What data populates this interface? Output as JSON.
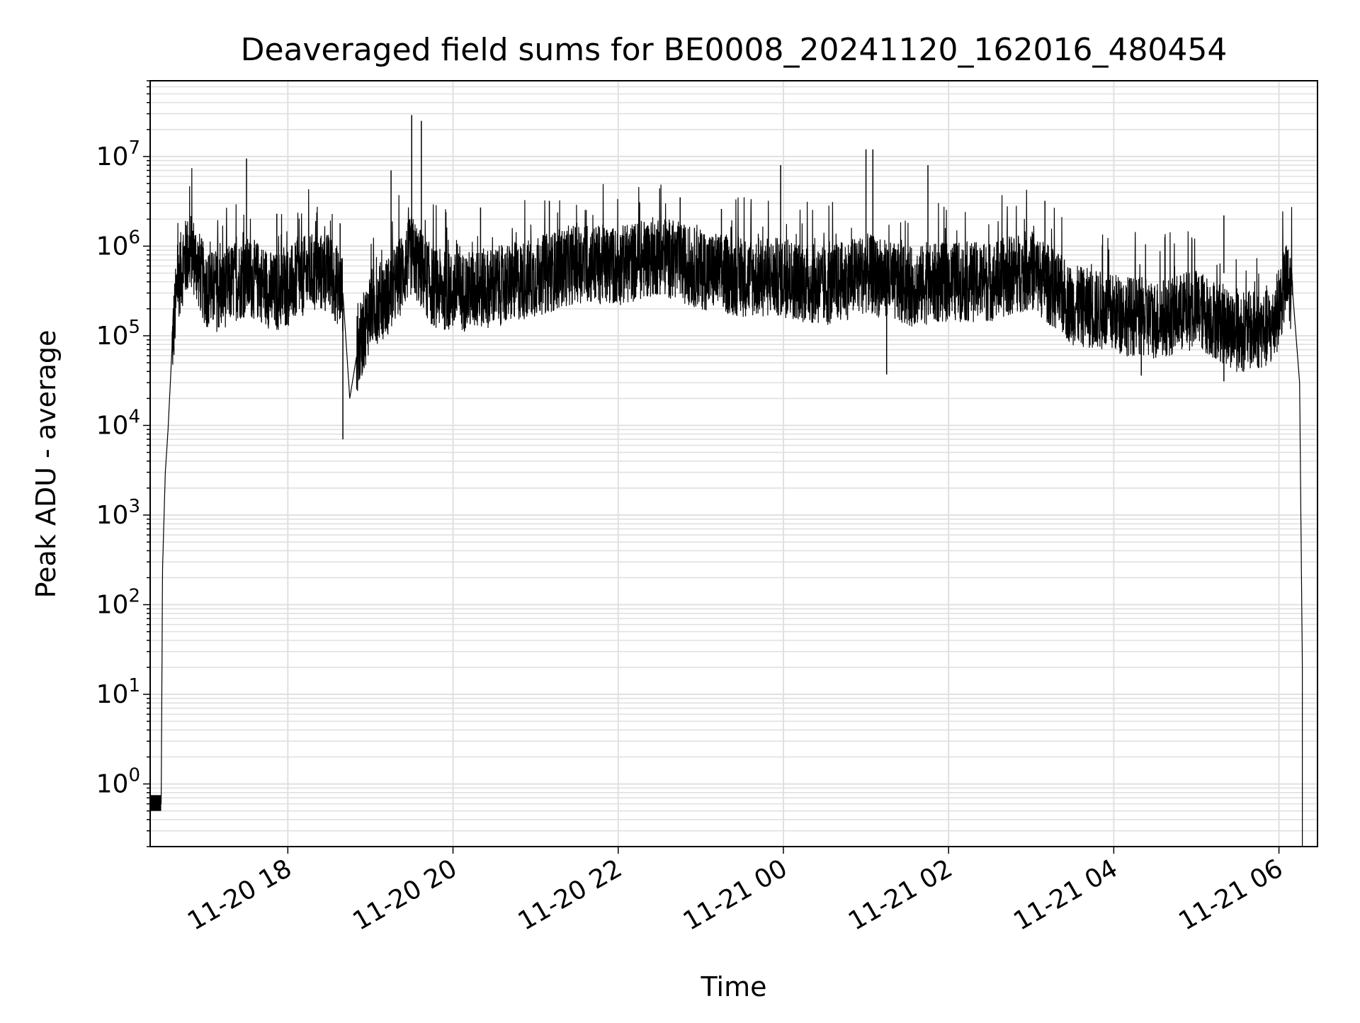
{
  "chart_data": {
    "type": "line",
    "title": "Deaveraged field sums for BE0008_20241120_162016_480454",
    "xlabel": "Time",
    "ylabel": "Peak ADU - average",
    "yscale": "log",
    "ylim": [
      0.2,
      70000000
    ],
    "xlim": [
      "2024-11-20 16:20",
      "2024-11-21 06:28"
    ],
    "x_ticks": [
      "11-20 18",
      "11-20 20",
      "11-20 22",
      "11-21 00",
      "11-21 02",
      "11-21 04",
      "11-21 06"
    ],
    "y_ticks": [
      {
        "base": "10",
        "exp": "0"
      },
      {
        "base": "10",
        "exp": "1"
      },
      {
        "base": "10",
        "exp": "2"
      },
      {
        "base": "10",
        "exp": "3"
      },
      {
        "base": "10",
        "exp": "4"
      },
      {
        "base": "10",
        "exp": "5"
      },
      {
        "base": "10",
        "exp": "6"
      },
      {
        "base": "10",
        "exp": "7"
      }
    ],
    "grid": true,
    "line_color": "#000000",
    "grid_color": "#e0e0e0",
    "series": [
      {
        "x": [
          "2024-11-20 16:20",
          "2024-11-20 16:28",
          "2024-11-20 16:29",
          "2024-11-20 16:31",
          "2024-11-20 16:33",
          "2024-11-20 16:36",
          "2024-11-20 16:40",
          "2024-11-20 16:45",
          "2024-11-20 16:50",
          "2024-11-20 17:00",
          "2024-11-20 17:10",
          "2024-11-20 17:20",
          "2024-11-20 17:30",
          "2024-11-20 17:40",
          "2024-11-20 17:50",
          "2024-11-20 18:00",
          "2024-11-20 18:15",
          "2024-11-20 18:30",
          "2024-11-20 18:40",
          "2024-11-20 18:45",
          "2024-11-20 18:50",
          "2024-11-20 19:00",
          "2024-11-20 19:15",
          "2024-11-20 19:30",
          "2024-11-20 19:45",
          "2024-11-20 20:00",
          "2024-11-20 20:30",
          "2024-11-20 21:00",
          "2024-11-20 21:30",
          "2024-11-20 22:00",
          "2024-11-20 22:30",
          "2024-11-20 23:00",
          "2024-11-20 23:30",
          "2024-11-21 00:00",
          "2024-11-21 00:30",
          "2024-11-21 01:00",
          "2024-11-21 01:30",
          "2024-11-21 02:00",
          "2024-11-21 02:30",
          "2024-11-21 03:00",
          "2024-11-21 03:30",
          "2024-11-21 04:00",
          "2024-11-21 04:30",
          "2024-11-21 05:00",
          "2024-11-21 05:30",
          "2024-11-21 05:55",
          "2024-11-21 06:05",
          "2024-11-21 06:10",
          "2024-11-21 06:15",
          "2024-11-21 06:17"
        ],
        "y": [
          0.6,
          0.6,
          250,
          3000,
          9000,
          80000,
          400000,
          700000,
          900000,
          350000,
          300000,
          400000,
          450000,
          400000,
          300000,
          350000,
          500000,
          500000,
          300000,
          20000,
          60000,
          200000,
          300000,
          800000,
          350000,
          300000,
          350000,
          450000,
          650000,
          600000,
          800000,
          550000,
          450000,
          450000,
          350000,
          500000,
          350000,
          400000,
          400000,
          550000,
          220000,
          180000,
          150000,
          200000,
          110000,
          120000,
          400000,
          300000,
          30000,
          20
        ]
      }
    ],
    "spikes": [
      {
        "x": "2024-11-20 17:30",
        "y": 9500000
      },
      {
        "x": "2024-11-20 17:52",
        "y": 2300000
      },
      {
        "x": "2024-11-20 18:38",
        "y": 1800000
      },
      {
        "x": "2024-11-20 18:40",
        "y": 7000
      },
      {
        "x": "2024-11-20 19:15",
        "y": 7000000
      },
      {
        "x": "2024-11-20 19:30",
        "y": 29000000
      },
      {
        "x": "2024-11-20 19:37",
        "y": 25000000
      },
      {
        "x": "2024-11-20 20:20",
        "y": 2700000
      },
      {
        "x": "2024-11-20 21:10",
        "y": 3200000
      },
      {
        "x": "2024-11-20 22:45",
        "y": 3500000
      },
      {
        "x": "2024-11-20 23:15",
        "y": 2600000
      },
      {
        "x": "2024-11-20 23:58",
        "y": 8000000
      },
      {
        "x": "2024-11-21 01:00",
        "y": 12000000
      },
      {
        "x": "2024-11-21 01:05",
        "y": 12000000
      },
      {
        "x": "2024-11-21 01:15",
        "y": 37000
      },
      {
        "x": "2024-11-21 01:45",
        "y": 8000000
      },
      {
        "x": "2024-11-21 03:10",
        "y": 3200000
      },
      {
        "x": "2024-11-21 04:20",
        "y": 36000
      },
      {
        "x": "2024-11-21 05:20",
        "y": 2200000
      },
      {
        "x": "2024-11-21 05:20",
        "y": 31000
      }
    ]
  }
}
